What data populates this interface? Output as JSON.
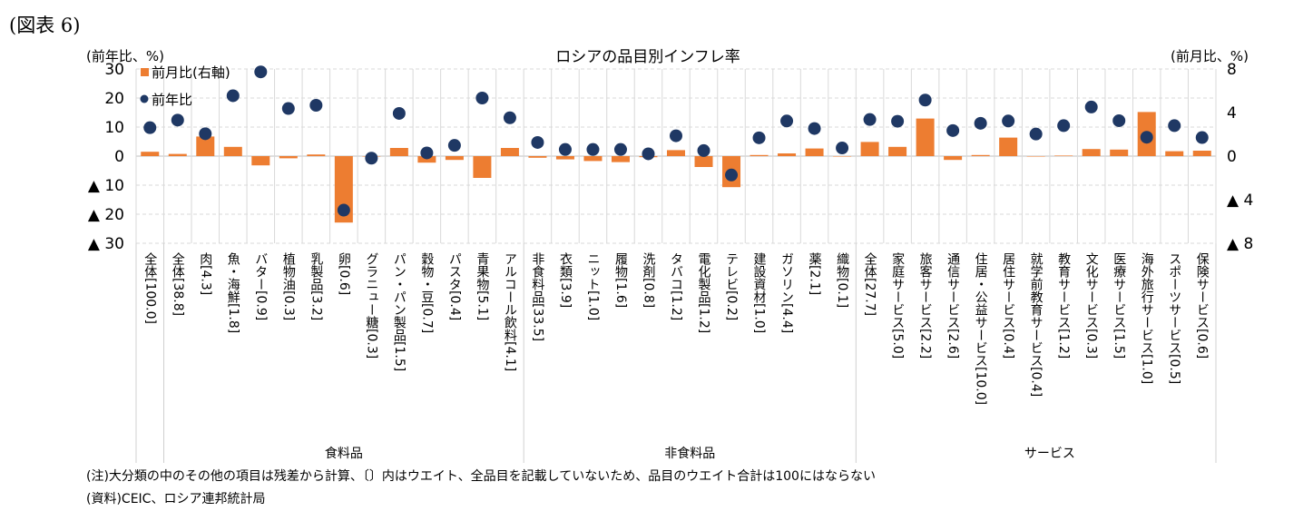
{
  "figure_label": "(図表 6)",
  "notes": [
    "(注)大分類の中のその他の項目は残差から計算、〔〕内はウエイト、全品目を記載していないため、品目のウエイト合計は100にはならない",
    "(資料)CEIC、ロシア連邦統計局"
  ],
  "colors": {
    "bar": "#ED7D31",
    "dot": "#1F3864",
    "grid": "#D9D9D9"
  },
  "chart_data": {
    "type": "bar+scatter",
    "title": "ロシアの品目別インフレ率",
    "ylabel_left": "(前年比、%)",
    "ylabel_right": "(前月比、%)",
    "ylim_left": [
      -30,
      30
    ],
    "ylim_right": [
      -8,
      8
    ],
    "yticks_left": [
      "30",
      "20",
      "10",
      "0",
      "▲ 10",
      "▲ 20",
      "▲ 30"
    ],
    "yticks_right": [
      "8",
      "4",
      "0",
      "▲ 4",
      "▲ 8"
    ],
    "grid": true,
    "legend_position": "top-left",
    "legend": [
      "前月比(右軸)",
      "前年比"
    ],
    "groups": [
      {
        "label": "食料品",
        "from": 1,
        "to": 13
      },
      {
        "label": "非食料品",
        "from": 14,
        "to": 25
      },
      {
        "label": "サービス",
        "from": 26,
        "to": 39
      }
    ],
    "categories": [
      "全体[100.0]",
      "全体[38.8]",
      "肉[4.3]",
      "魚・海鮮[1.8]",
      "バター[0.9]",
      "植物油[0.3]",
      "乳製品[3.2]",
      "卵[0.6]",
      "グラニュー糖[0.3]",
      "パン・パン製品[1.5]",
      "穀物・豆[0.7]",
      "パスタ[0.4]",
      "青果物[5.1]",
      "アルコール飲料[4.1]",
      "非食料品[33.5]",
      "衣類[3.9]",
      "ニット[1.0]",
      "履物[1.6]",
      "洗剤[0.8]",
      "タバコ[1.2]",
      "電化製品[1.2]",
      "テレビ[0.2]",
      "建設資材[1.0]",
      "ガソリン[4.4]",
      "薬[2.1]",
      "織物[0.1]",
      "全体[27.7]",
      "家庭サービス[5.0]",
      "旅客サービス[2.2]",
      "通信サービス[2.6]",
      "住居・公益サービス[10.0]",
      "居住サービス[0.4]",
      "就学前教育サービス[0.4]",
      "教育サービス[1.2]",
      "文化サービス[0.3]",
      "医療サービス[1.5]",
      "海外旅行サービス[1.0]",
      "スポーツサービス[0.5]",
      "保険サービス[0.6]"
    ],
    "series": [
      {
        "name": "前月比(右軸)",
        "type": "bar",
        "axis": "right",
        "values": [
          0.4,
          0.2,
          1.8,
          0.85,
          -0.85,
          -0.2,
          0.15,
          -6.1,
          0,
          0.75,
          -0.6,
          -0.35,
          -2.0,
          0.75,
          -0.15,
          -0.3,
          -0.45,
          -0.55,
          -0.1,
          0.55,
          -1.0,
          -2.85,
          0.1,
          0.25,
          0.7,
          0,
          1.3,
          0.85,
          3.45,
          -0.35,
          0.1,
          1.7,
          0,
          0.05,
          0.65,
          0.6,
          4.05,
          0.45,
          0.5
        ]
      },
      {
        "name": "前年比",
        "type": "scatter",
        "axis": "left",
        "values": [
          9.8,
          12.4,
          7.7,
          20.8,
          29,
          16.4,
          17.5,
          -18.6,
          -0.7,
          14.7,
          1.1,
          3.7,
          20,
          13.2,
          4.7,
          2.3,
          2.3,
          2.3,
          0.8,
          7,
          1.9,
          -6.5,
          6.3,
          12.1,
          9.5,
          2.8,
          12.6,
          12,
          19.3,
          8.8,
          11.3,
          12.1,
          7.6,
          10.5,
          16.9,
          12.2,
          6.5,
          10.5,
          6.4
        ]
      }
    ]
  }
}
